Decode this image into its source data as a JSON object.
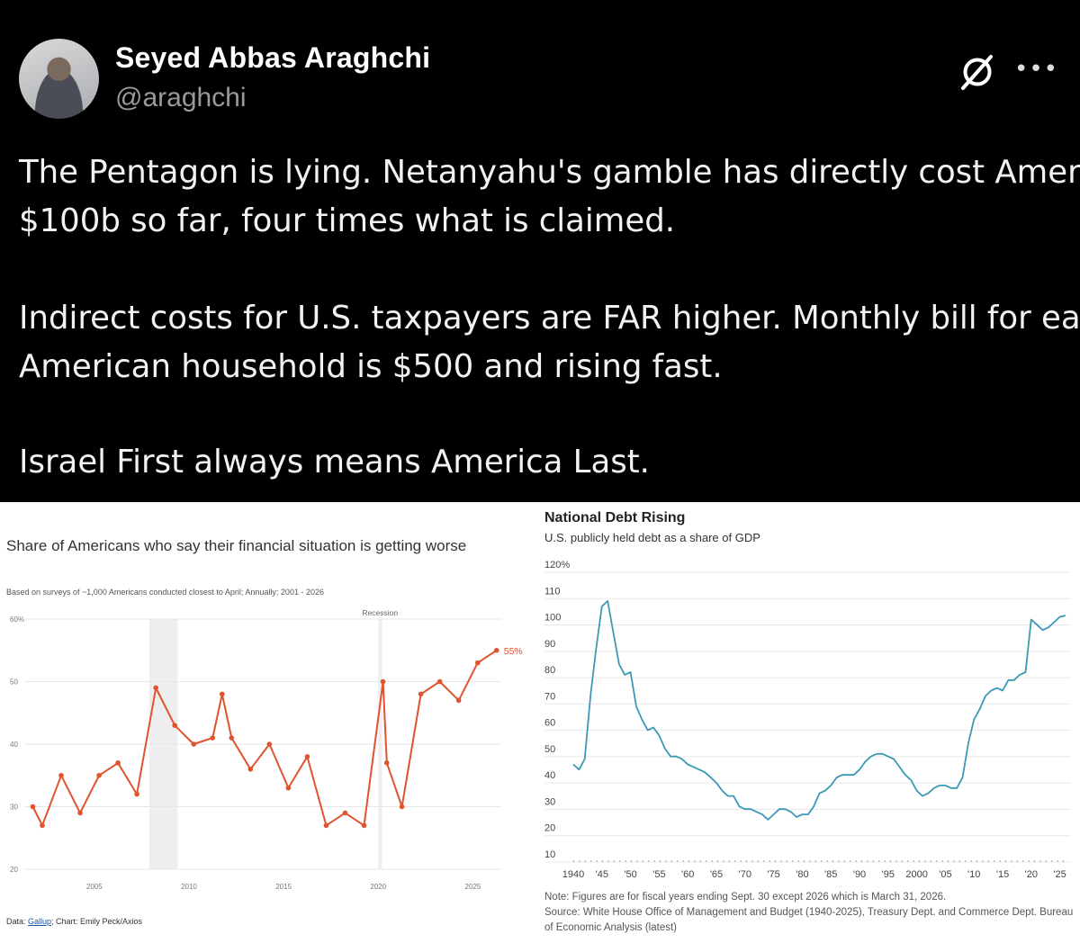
{
  "tweet": {
    "display_name": "Seyed Abbas Araghchi",
    "handle": "@araghchi",
    "lines": [
      "The Pentagon is lying. Netanyahu's gamble has directly cost America",
      "$100b so far, four times what is claimed.",
      "Indirect costs for U.S. taxpayers are FAR higher. Monthly bill for each",
      "American household is $500 and rising fast.",
      "Israel First always means America Last."
    ],
    "icons": {
      "grok": "grok-icon",
      "more": "more-icon"
    },
    "colors": {
      "background": "#000000",
      "text": "#f2f2f2",
      "handle": "#9a9a9a"
    }
  },
  "left_chart": {
    "title": "Share of Americans who say their financial situation is getting worse",
    "subtitle": "Based on surveys of ~1,000 Americans conducted closest to April; Annually; 2001 - 2026",
    "footer_prefix": "Data: ",
    "footer_link": "Gallup",
    "footer_suffix": "; Chart: Emily Peck/Axios"
  },
  "right_chart": {
    "title": "National Debt Rising",
    "subtitle": "U.S. publicly held debt as a share of GDP",
    "note": "Note: Figures are for fiscal years ending Sept. 30 except 2026 which is March 31, 2026.",
    "source": "Source: White House Office of Management and Budget (1940-2025), Treasury Dept. and Commerce Dept. Bureau of Economic Analysis (latest)"
  },
  "chart_data": [
    {
      "type": "line",
      "title": "Share of Americans who say their financial situation is getting worse",
      "xlabel": "",
      "ylabel": "",
      "y_ticks": [
        "20",
        "30",
        "40",
        "50",
        "60%"
      ],
      "x_ticks": [
        "2005",
        "2010",
        "2015",
        "2020",
        "2025"
      ],
      "ylim": [
        20,
        60
      ],
      "xlim": [
        2001.3,
        2026.5
      ],
      "grid": true,
      "color": "#e0532f",
      "shaded_regions": [
        {
          "from": 2007.9,
          "to": 2009.4,
          "label": ""
        },
        {
          "from": 2020.0,
          "to": 2020.2,
          "label": "Recession"
        }
      ],
      "end_label": "55%",
      "series": [
        {
          "x": [
            2001.75,
            2002.25,
            2003.25,
            2004.25,
            2005.25,
            2006.25,
            2007.25,
            2008.25,
            2009.25,
            2010.25,
            2011.25,
            2011.75,
            2012.25,
            2013.25,
            2014.25,
            2015.25,
            2016.25,
            2017.25,
            2018.25,
            2019.25,
            2020.25,
            2020.45,
            2021.25,
            2022.25,
            2023.25,
            2024.25,
            2025.25,
            2026.25
          ],
          "y": [
            30,
            27,
            35,
            29,
            35,
            37,
            32,
            49,
            43,
            40,
            41,
            48,
            41,
            36,
            40,
            33,
            38,
            27,
            29,
            27,
            50,
            37,
            30,
            48,
            50,
            47,
            53,
            55
          ]
        }
      ]
    },
    {
      "type": "line",
      "title": "National Debt Rising",
      "subtitle": "U.S. publicly held debt as a share of GDP",
      "y_ticks": [
        "10",
        "20",
        "30",
        "40",
        "50",
        "60",
        "70",
        "80",
        "90",
        "100",
        "110",
        "120%"
      ],
      "x_ticks": [
        "1940",
        "'45",
        "'50",
        "'55",
        "'60",
        "'65",
        "'70",
        "'75",
        "'80",
        "'85",
        "'90",
        "'95",
        "2000",
        "'05",
        "'10",
        "'15",
        "'20",
        "'25"
      ],
      "ylim": [
        10,
        120
      ],
      "xlim": [
        1940,
        2026
      ],
      "grid": true,
      "color": "#3a9ab5",
      "series": [
        {
          "x": [
            1940,
            1941,
            1942,
            1943,
            1944,
            1945,
            1946,
            1947,
            1948,
            1949,
            1950,
            1951,
            1952,
            1953,
            1954,
            1955,
            1956,
            1957,
            1958,
            1959,
            1960,
            1961,
            1962,
            1963,
            1964,
            1965,
            1966,
            1967,
            1968,
            1969,
            1970,
            1971,
            1972,
            1973,
            1974,
            1975,
            1976,
            1977,
            1978,
            1979,
            1980,
            1981,
            1982,
            1983,
            1984,
            1985,
            1986,
            1987,
            1988,
            1989,
            1990,
            1991,
            1992,
            1993,
            1994,
            1995,
            1996,
            1997,
            1998,
            1999,
            2000,
            2001,
            2002,
            2003,
            2004,
            2005,
            2006,
            2007,
            2008,
            2009,
            2010,
            2011,
            2012,
            2013,
            2014,
            2015,
            2016,
            2017,
            2018,
            2019,
            2020,
            2021,
            2022,
            2023,
            2024,
            2025,
            2026
          ],
          "y": [
            44,
            42,
            46,
            70,
            88,
            104,
            106,
            94,
            82,
            78,
            79,
            66,
            61,
            57,
            58,
            55,
            50,
            47,
            47,
            46,
            44,
            43,
            42,
            41,
            39,
            37,
            34,
            32,
            32,
            28,
            27,
            27,
            26,
            25,
            23,
            25,
            27,
            27,
            26,
            24,
            25,
            25,
            28,
            33,
            34,
            36,
            39,
            40,
            40,
            40,
            42,
            45,
            47,
            48,
            48,
            47,
            46,
            43,
            40,
            38,
            34,
            32,
            33,
            35,
            36,
            36,
            35,
            35,
            39,
            52,
            61,
            65,
            70,
            72,
            73,
            72,
            76,
            76,
            78,
            79,
            99,
            97,
            95,
            96,
            98,
            100,
            100.5
          ]
        }
      ],
      "note": "Note: Figures are for fiscal years ending Sept. 30 except 2026 which is March 31, 2026.",
      "source": "Source: White House Office of Management and Budget (1940-2025), Treasury Dept. and Commerce Dept. Bureau of Economic Analysis (latest)"
    }
  ]
}
